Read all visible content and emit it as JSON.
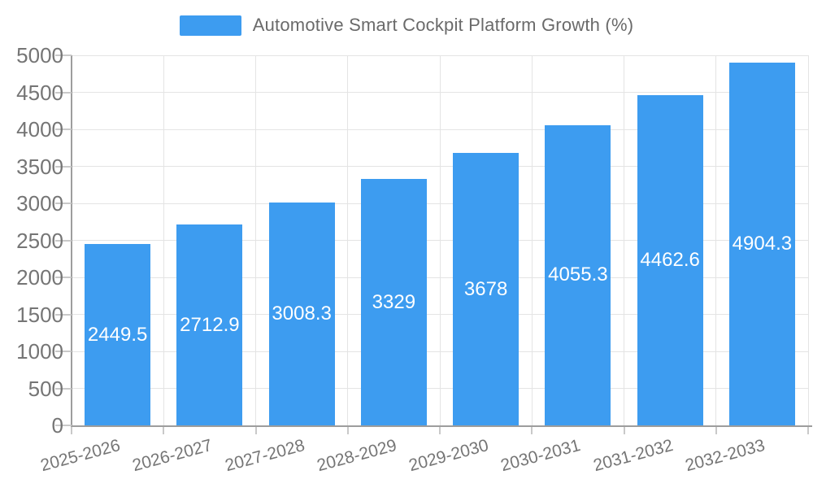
{
  "chart_data": {
    "type": "bar",
    "title": "Automotive Smart Cockpit Platform Growth (%)",
    "categories": [
      "2025-2026",
      "2026-2027",
      "2027-2028",
      "2028-2029",
      "2029-2030",
      "2030-2031",
      "2031-2032",
      "2032-2033"
    ],
    "values": [
      2449.5,
      2712.9,
      3008.3,
      3329,
      3678,
      4055.3,
      4462.6,
      4904.3
    ],
    "value_labels": [
      "2449.5",
      "2712.9",
      "3008.3",
      "3329",
      "3678",
      "4055.3",
      "4462.6",
      "4904.3"
    ],
    "ylim": [
      0,
      5000
    ],
    "ytick_step": 500,
    "ytick_labels": [
      "0",
      "500",
      "1000",
      "1500",
      "2000",
      "2500",
      "3000",
      "3500",
      "4000",
      "4500",
      "5000"
    ],
    "xlabel": "",
    "ylabel": "",
    "x_label_rotation_deg": 15,
    "grid": "on",
    "legend_position": "top-center",
    "colors": {
      "bar": "#3D9CF0",
      "bar_value_text": "#FFFFFF",
      "grid_line": "#E4E4E4",
      "axis_line": "#9D9D9D",
      "tick_line": "#C9C9C9",
      "axis_text": "#757575",
      "legend_text": "#6A6A6A",
      "background": "#FFFFFF"
    }
  }
}
